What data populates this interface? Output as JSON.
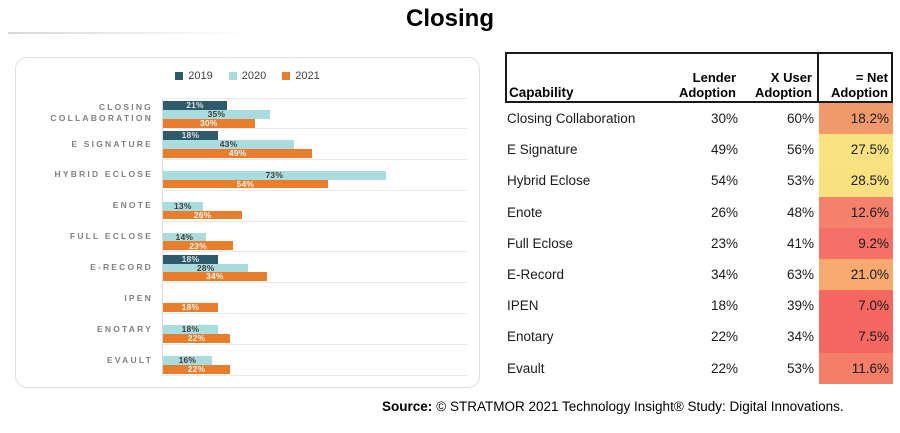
{
  "title": "Closing",
  "chart_data": {
    "type": "bar",
    "orientation": "horizontal",
    "legend_position": "top",
    "grid": "category-separators",
    "xlim": [
      0,
      100
    ],
    "value_suffix": "%",
    "categories": [
      "CLOSING COLLABORATION",
      "E SIGNATURE",
      "HYBRID ECLOSE",
      "ENOTE",
      "FULL ECLOSE",
      "E-RECORD",
      "IPEN",
      "ENOTARY",
      "EVAULT"
    ],
    "series": [
      {
        "name": "2019",
        "color": "#2f5a6b",
        "label_color": "#d8e0e4",
        "values": [
          21,
          18,
          null,
          null,
          null,
          18,
          null,
          null,
          null
        ]
      },
      {
        "name": "2020",
        "color": "#a9dcdf",
        "label_color": "#404040",
        "values": [
          35,
          43,
          73,
          13,
          14,
          28,
          null,
          18,
          16
        ]
      },
      {
        "name": "2021",
        "color": "#e87d2b",
        "label_color": "#fdf4ec",
        "values": [
          30,
          49,
          54,
          26,
          23,
          34,
          18,
          22,
          22
        ]
      }
    ]
  },
  "table": {
    "headers": [
      "Capability",
      "Lender Adoption",
      "X User Adoption",
      "= Net Adoption"
    ],
    "rows": [
      {
        "capability": "Closing Collaboration",
        "lender": "30%",
        "user": "60%",
        "net": "18.2%",
        "net_color": "#f09a6b"
      },
      {
        "capability": "E Signature",
        "lender": "49%",
        "user": "56%",
        "net": "27.5%",
        "net_color": "#fbe281"
      },
      {
        "capability": "Hybrid Eclose",
        "lender": "54%",
        "user": "53%",
        "net": "28.5%",
        "net_color": "#fae180"
      },
      {
        "capability": "Enote",
        "lender": "26%",
        "user": "48%",
        "net": "12.6%",
        "net_color": "#f5806c"
      },
      {
        "capability": "Full Eclose",
        "lender": "23%",
        "user": "41%",
        "net": "9.2%",
        "net_color": "#f57168"
      },
      {
        "capability": "E-Record",
        "lender": "34%",
        "user": "63%",
        "net": "21.0%",
        "net_color": "#f6aa70"
      },
      {
        "capability": "IPEN",
        "lender": "18%",
        "user": "39%",
        "net": "7.0%",
        "net_color": "#f56761"
      },
      {
        "capability": "Enotary",
        "lender": "22%",
        "user": "34%",
        "net": "7.5%",
        "net_color": "#f56862"
      },
      {
        "capability": "Evault",
        "lender": "22%",
        "user": "53%",
        "net": "11.6%",
        "net_color": "#f67e69"
      }
    ]
  },
  "source": {
    "label": "Source:",
    "text": "© STRATMOR 2021 Technology Insight® Study: Digital Innovations."
  }
}
